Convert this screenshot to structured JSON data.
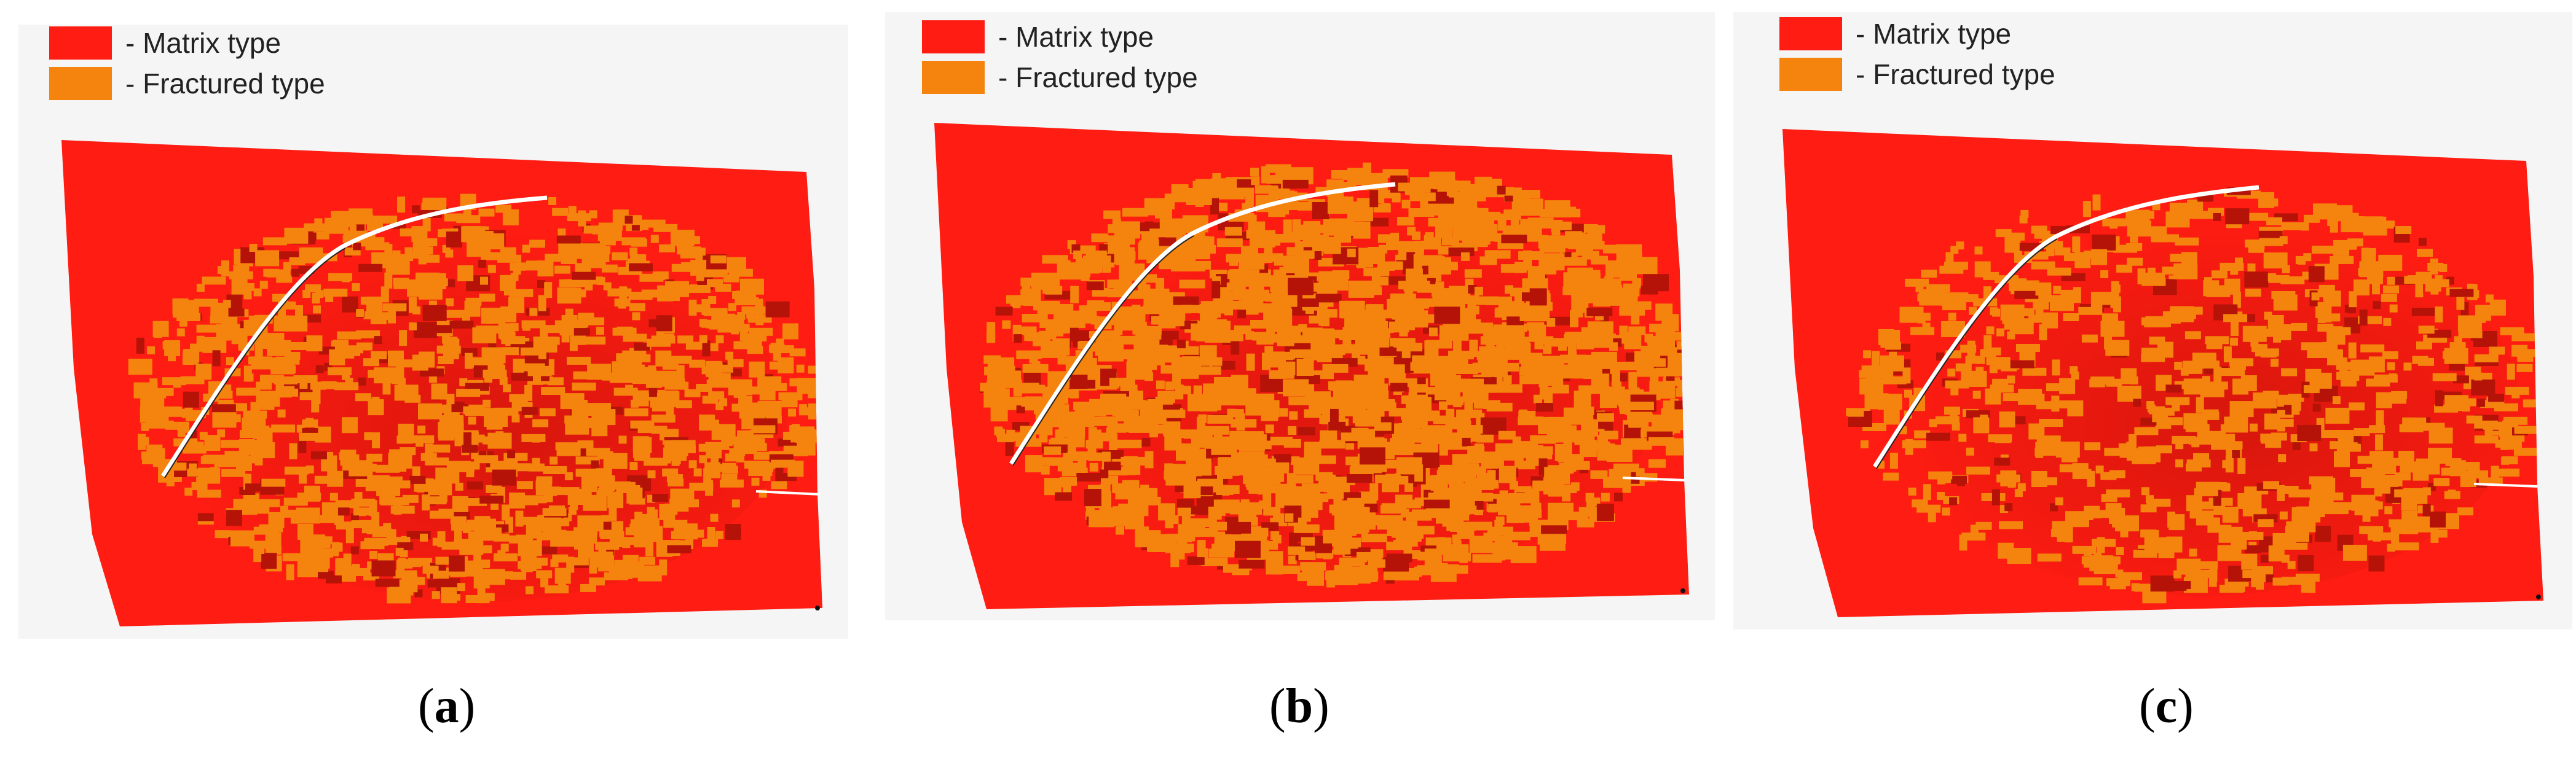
{
  "colors": {
    "matrix": "#ff1c12",
    "fractured": "#f5840e",
    "background_frame": "#f5f5f5",
    "dark_red": "#b51208"
  },
  "legend": {
    "matrix_label": "- Matrix type",
    "fractured_label": "- Fractured type"
  },
  "panels": [
    {
      "id": "a",
      "caption_letter": "a"
    },
    {
      "id": "b",
      "caption_letter": "b"
    },
    {
      "id": "c",
      "caption_letter": "c"
    }
  ]
}
